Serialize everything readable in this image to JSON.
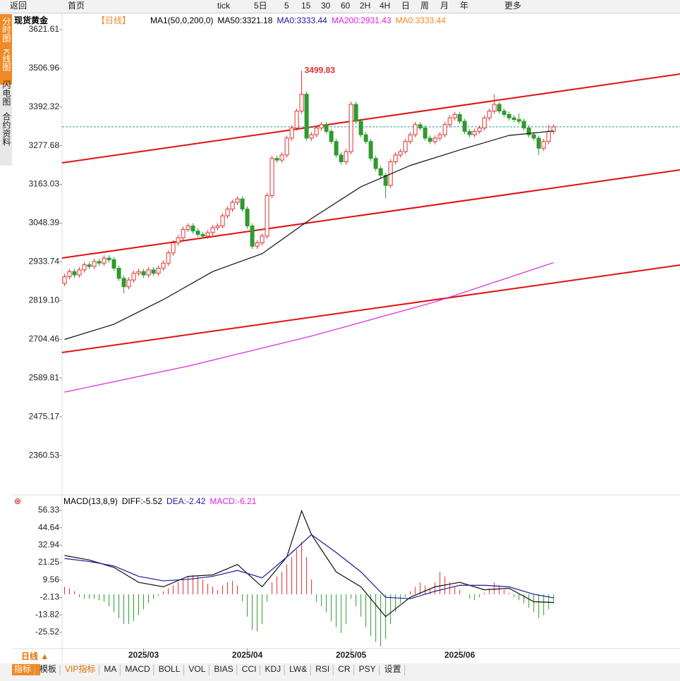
{
  "toolbar": [
    "返回",
    "首页",
    "tick",
    "5日",
    "5",
    "15",
    "30",
    "60",
    "2H",
    "4H",
    "日",
    "周",
    "月",
    "年",
    "更多"
  ],
  "sidebar": [
    "分时图",
    "K线图",
    "闪电图",
    "合约资料"
  ],
  "header": {
    "name": "现货黄金",
    "period": "【日线】",
    "indicator": "MA1(50,0,200,0)",
    "ma50": "MA50:3321.18",
    "ma0": "MA0:3333.44",
    "ma200": "MA200:2931.43",
    "ma0b": "MA0:3333.44"
  },
  "macd_header": {
    "name": "MACD(13,8,9)",
    "diff": "DIFF:-5.52",
    "dea": "DEA:-2.42",
    "macd": "MACD:-6.21"
  },
  "period_button": "日线 ▲",
  "tabs": [
    "指标",
    "模板",
    "VIP指标",
    "MA",
    "MACD",
    "BOLL",
    "VOL",
    "BIAS",
    "CCI",
    "KDJ",
    "LW&",
    "RSI",
    "CR",
    "PSY",
    "设置"
  ],
  "chart_data": {
    "type": "candlestick",
    "xlim": [
      -0.5,
      124.6
    ],
    "ylim": [
      2248,
      3663
    ],
    "yticks": [
      3621.61,
      3506.96,
      3392.32,
      3277.68,
      3163.03,
      3048.39,
      2933.74,
      {
        "value": 2819.1,
        "label": "2819.10"
      },
      2704.46,
      2589.81,
      2475.17,
      2360.53
    ],
    "xticks": [
      {
        "value": 16,
        "label": "2025/03"
      },
      {
        "value": 37,
        "label": "2025/04"
      },
      {
        "value": 58,
        "label": "2025/05"
      },
      {
        "value": 80,
        "label": "2025/06"
      }
    ],
    "up_color": "#e03030",
    "down_color": "#2f9a2f",
    "candles": [
      [
        2870,
        2898,
        2862,
        2890
      ],
      [
        2890,
        2913,
        2882,
        2905
      ],
      [
        2905,
        2913,
        2887,
        2895
      ],
      [
        2895,
        2918,
        2887,
        2910
      ],
      [
        2910,
        2933,
        2902,
        2925
      ],
      [
        2925,
        2933,
        2912,
        2920
      ],
      [
        2920,
        2943,
        2912,
        2935
      ],
      [
        2935,
        2943,
        2922,
        2930
      ],
      [
        2930,
        2953,
        2922,
        2945
      ],
      [
        2945,
        2953,
        2932,
        2940
      ],
      [
        2940,
        2948,
        2907,
        2915
      ],
      [
        2915,
        2923,
        2877,
        2885
      ],
      [
        2885,
        2893,
        2840,
        2860
      ],
      [
        2860,
        2888,
        2852,
        2880
      ],
      [
        2880,
        2908,
        2872,
        2900
      ],
      [
        2900,
        2913,
        2892,
        2905
      ],
      [
        2905,
        2913,
        2887,
        2895
      ],
      [
        2895,
        2918,
        2887,
        2910
      ],
      [
        2910,
        2918,
        2892,
        2900
      ],
      [
        2900,
        2923,
        2892,
        2915
      ],
      [
        2915,
        2938,
        2907,
        2930
      ],
      [
        2930,
        2968,
        2922,
        2960
      ],
      [
        2960,
        2998,
        2952,
        2990
      ],
      [
        2990,
        3013,
        2982,
        3005
      ],
      [
        3005,
        3038,
        2997,
        3030
      ],
      [
        3030,
        3048,
        3022,
        3040
      ],
      [
        3040,
        3048,
        3017,
        3025
      ],
      [
        3025,
        3033,
        3007,
        3015
      ],
      [
        3015,
        3023,
        3002,
        3010
      ],
      [
        3010,
        3028,
        3002,
        3020
      ],
      [
        3020,
        3043,
        3012,
        3035
      ],
      [
        3035,
        3048,
        3027,
        3040
      ],
      [
        3040,
        3078,
        3032,
        3070
      ],
      [
        3070,
        3098,
        3062,
        3090
      ],
      [
        3090,
        3118,
        3082,
        3110
      ],
      [
        3110,
        3128,
        3102,
        3120
      ],
      [
        3120,
        3128,
        3082,
        3090
      ],
      [
        3090,
        3098,
        3032,
        3040
      ],
      [
        3040,
        3048,
        2972,
        2980
      ],
      [
        2980,
        2998,
        2972,
        2990
      ],
      [
        2990,
        3018,
        2982,
        3010
      ],
      [
        3010,
        3138,
        3002,
        3130
      ],
      [
        3130,
        3248,
        3122,
        3240
      ],
      [
        3240,
        3248,
        3227,
        3235
      ],
      [
        3235,
        3258,
        3227,
        3250
      ],
      [
        3250,
        3308,
        3242,
        3300
      ],
      [
        3300,
        3338,
        3292,
        3330
      ],
      [
        3330,
        3388,
        3322,
        3380
      ],
      [
        3380,
        3499.83,
        3372,
        3430
      ],
      [
        3430,
        3438,
        3292,
        3300
      ],
      [
        3300,
        3318,
        3292,
        3310
      ],
      [
        3310,
        3338,
        3302,
        3330
      ],
      [
        3330,
        3348,
        3322,
        3340
      ],
      [
        3340,
        3348,
        3312,
        3320
      ],
      [
        3320,
        3328,
        3282,
        3290
      ],
      [
        3290,
        3298,
        3242,
        3250
      ],
      [
        3250,
        3258,
        3222,
        3230
      ],
      [
        3230,
        3268,
        3222,
        3260
      ],
      [
        3260,
        3408,
        3252,
        3400
      ],
      [
        3400,
        3408,
        3342,
        3350
      ],
      [
        3350,
        3358,
        3302,
        3310
      ],
      [
        3310,
        3318,
        3282,
        3290
      ],
      [
        3290,
        3298,
        3232,
        3240
      ],
      [
        3240,
        3248,
        3202,
        3210
      ],
      [
        3210,
        3218,
        3182,
        3190
      ],
      [
        3190,
        3198,
        3122,
        3160
      ],
      [
        3160,
        3238,
        3152,
        3230
      ],
      [
        3230,
        3258,
        3222,
        3250
      ],
      [
        3250,
        3268,
        3242,
        3260
      ],
      [
        3260,
        3298,
        3252,
        3290
      ],
      [
        3290,
        3318,
        3282,
        3310
      ],
      [
        3310,
        3348,
        3302,
        3340
      ],
      [
        3340,
        3348,
        3322,
        3330
      ],
      [
        3330,
        3338,
        3292,
        3300
      ],
      [
        3300,
        3308,
        3282,
        3290
      ],
      [
        3290,
        3308,
        3282,
        3300
      ],
      [
        3300,
        3318,
        3292,
        3310
      ],
      [
        3310,
        3348,
        3302,
        3340
      ],
      [
        3340,
        3368,
        3332,
        3360
      ],
      [
        3360,
        3378,
        3352,
        3370
      ],
      [
        3370,
        3378,
        3342,
        3350
      ],
      [
        3350,
        3358,
        3312,
        3320
      ],
      [
        3320,
        3328,
        3302,
        3310
      ],
      [
        3310,
        3328,
        3302,
        3320
      ],
      [
        3320,
        3338,
        3312,
        3330
      ],
      [
        3330,
        3368,
        3322,
        3360
      ],
      [
        3360,
        3388,
        3352,
        3380
      ],
      [
        3380,
        3430,
        3372,
        3400
      ],
      [
        3400,
        3408,
        3372,
        3380
      ],
      [
        3380,
        3388,
        3362,
        3370
      ],
      [
        3370,
        3378,
        3352,
        3360
      ],
      [
        3360,
        3368,
        3347,
        3355
      ],
      [
        3355,
        3373,
        3342,
        3350
      ],
      [
        3350,
        3358,
        3322,
        3330
      ],
      [
        3330,
        3338,
        3302,
        3310
      ],
      [
        3310,
        3318,
        3292,
        3300
      ],
      [
        3300,
        3308,
        3250,
        3270
      ],
      [
        3270,
        3298,
        3262,
        3290
      ],
      [
        3290,
        3340,
        3282,
        3320
      ],
      [
        3320,
        3341,
        3312,
        3333.44
      ]
    ],
    "last_price": 3333.44,
    "ma50": {
      "color": "#111111",
      "x": [
        0,
        10,
        20,
        30,
        40,
        50,
        60,
        70,
        80,
        90,
        99
      ],
      "values": [
        2704,
        2749,
        2822,
        2905,
        2958,
        3062,
        3156,
        3219,
        3265,
        3308,
        3321.18
      ]
    },
    "ma200": {
      "color": "#dd22dd",
      "x": [
        0,
        25,
        50,
        75,
        99
      ],
      "values": [
        2548,
        2625,
        2714,
        2815,
        2931.43
      ]
    },
    "macd": {
      "ylim": [
        -35.5,
        62.9
      ],
      "yticks": [
        56.33,
        44.64,
        32.94,
        21.25,
        9.56,
        -2.13,
        -13.82,
        -25.52
      ],
      "hist": [
        5,
        4,
        2,
        -2,
        -3,
        -3,
        -3,
        -4,
        -5,
        -8,
        -12,
        -16,
        -20,
        -20,
        -18,
        -14,
        -10,
        -6,
        -3,
        -1,
        2,
        4,
        6,
        8,
        10,
        12,
        13,
        12,
        10,
        7,
        5,
        3,
        6,
        8,
        9,
        6,
        -5,
        -15,
        -24,
        -25,
        -20,
        -5,
        8,
        12,
        15,
        20,
        25,
        30,
        35,
        25,
        10,
        -5,
        -8,
        -12,
        -18,
        -22,
        -26,
        -20,
        -3,
        -8,
        -15,
        -22,
        -28,
        -32,
        -35,
        -30,
        -20,
        -12,
        -6,
        -2,
        2,
        5,
        8,
        6,
        4,
        8,
        15,
        12,
        8,
        5,
        3,
        0,
        -3,
        -4,
        -2,
        1,
        4,
        8,
        6,
        3,
        1,
        -2,
        -4,
        -6,
        -9,
        -12,
        -16,
        -14,
        -10,
        -6.21
      ],
      "diff": {
        "color": "#111111",
        "x": [
          0,
          5,
          10,
          15,
          20,
          25,
          30,
          35,
          40,
          45,
          48,
          50,
          55,
          60,
          65,
          70,
          75,
          80,
          85,
          90,
          95,
          99
        ],
        "values": [
          26,
          23,
          18,
          8,
          5,
          12,
          13,
          20,
          5,
          25,
          56,
          40,
          15,
          5,
          -15,
          -2,
          5,
          8,
          3,
          4,
          -5,
          -5.52
        ]
      },
      "dea": {
        "color": "#1a1a9a",
        "x": [
          0,
          5,
          10,
          15,
          20,
          25,
          30,
          35,
          40,
          45,
          50,
          55,
          60,
          65,
          70,
          75,
          80,
          85,
          90,
          95,
          99
        ],
        "values": [
          24,
          22,
          19,
          12,
          9,
          10,
          12,
          16,
          11,
          25,
          40,
          28,
          15,
          -2,
          -3,
          2,
          6,
          6,
          5,
          0,
          -2.42
        ]
      }
    }
  }
}
